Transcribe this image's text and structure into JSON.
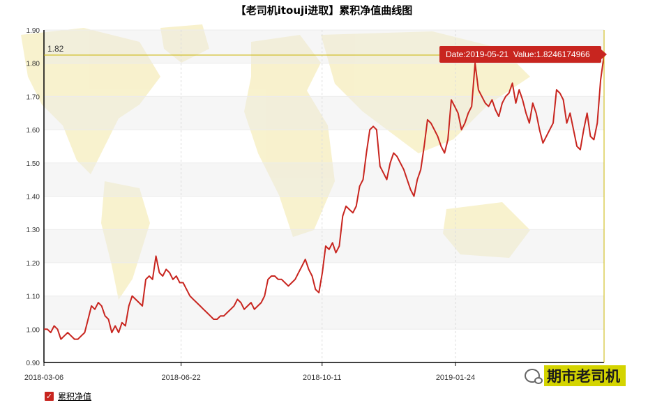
{
  "chart_data": {
    "type": "line",
    "title": "【老司机itouji进取】累积净值曲线图",
    "ylim": [
      0.9,
      1.9
    ],
    "yticks": [
      "0.90",
      "1.00",
      "1.10",
      "1.20",
      "1.30",
      "1.40",
      "1.50",
      "1.60",
      "1.70",
      "1.80",
      "1.90"
    ],
    "xticks": [
      "2018-03-06",
      "2018-06-22",
      "2018-10-11",
      "2019-01-24"
    ],
    "x_range": [
      "2018-03-06",
      "2019-05-21"
    ],
    "series": [
      {
        "name": "累积净值",
        "color": "#c8251f",
        "values": [
          1.0,
          1.0,
          0.99,
          1.01,
          1.0,
          0.97,
          0.98,
          0.99,
          0.98,
          0.97,
          0.97,
          0.98,
          0.99,
          1.03,
          1.07,
          1.06,
          1.08,
          1.07,
          1.04,
          1.03,
          0.99,
          1.01,
          0.99,
          1.02,
          1.01,
          1.07,
          1.1,
          1.09,
          1.08,
          1.07,
          1.15,
          1.16,
          1.15,
          1.22,
          1.17,
          1.16,
          1.18,
          1.17,
          1.15,
          1.16,
          1.14,
          1.14,
          1.12,
          1.1,
          1.09,
          1.08,
          1.07,
          1.06,
          1.05,
          1.04,
          1.03,
          1.03,
          1.04,
          1.04,
          1.05,
          1.06,
          1.07,
          1.09,
          1.08,
          1.06,
          1.07,
          1.08,
          1.06,
          1.07,
          1.08,
          1.1,
          1.15,
          1.16,
          1.16,
          1.15,
          1.15,
          1.14,
          1.13,
          1.14,
          1.15,
          1.17,
          1.19,
          1.21,
          1.18,
          1.16,
          1.12,
          1.11,
          1.17,
          1.25,
          1.24,
          1.26,
          1.23,
          1.25,
          1.34,
          1.37,
          1.36,
          1.35,
          1.37,
          1.43,
          1.45,
          1.53,
          1.6,
          1.61,
          1.6,
          1.49,
          1.47,
          1.45,
          1.5,
          1.53,
          1.52,
          1.5,
          1.48,
          1.45,
          1.42,
          1.4,
          1.45,
          1.48,
          1.55,
          1.63,
          1.62,
          1.6,
          1.58,
          1.55,
          1.53,
          1.57,
          1.69,
          1.67,
          1.65,
          1.6,
          1.62,
          1.65,
          1.67,
          1.8,
          1.72,
          1.7,
          1.68,
          1.67,
          1.69,
          1.66,
          1.64,
          1.68,
          1.7,
          1.71,
          1.74,
          1.68,
          1.72,
          1.69,
          1.65,
          1.62,
          1.68,
          1.65,
          1.6,
          1.56,
          1.58,
          1.6,
          1.62,
          1.72,
          1.71,
          1.69,
          1.62,
          1.65,
          1.6,
          1.55,
          1.54,
          1.6,
          1.65,
          1.58,
          1.57,
          1.62,
          1.75,
          1.8246174966
        ]
      }
    ],
    "crosshair_value": "1.82",
    "tooltip": "Date:2019-05-21  Value:1.8246174966",
    "grid": true,
    "legend_position": "bottom-left"
  },
  "watermark": {
    "text": "期市老司机"
  }
}
